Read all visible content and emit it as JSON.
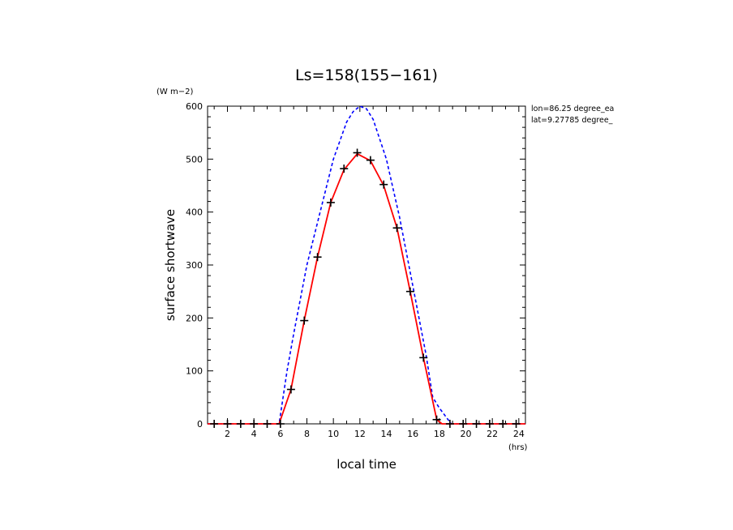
{
  "chart_data": {
    "type": "line",
    "title": "Ls=158(155−161)",
    "xlabel": "local time",
    "ylabel": "surface shortwave",
    "x_unit": "(hrs)",
    "y_unit": "(W m−2)",
    "xlim": [
      0.5,
      24.5
    ],
    "ylim": [
      0,
      600
    ],
    "x_ticks": [
      2,
      4,
      6,
      8,
      10,
      12,
      14,
      16,
      18,
      20,
      22,
      24
    ],
    "y_ticks": [
      0,
      100,
      200,
      300,
      400,
      500,
      600
    ],
    "info_lines": [
      "lon=86.25 degree_ea",
      "lat=9.27785 degree_"
    ],
    "series": [
      {
        "style": "dashed",
        "color": "#0000ff",
        "x": [
          0.5,
          1,
          2,
          3,
          4,
          5,
          5.9,
          6.5,
          7,
          8,
          9,
          10,
          11,
          11.5,
          12,
          12.5,
          13,
          14,
          15,
          16,
          17,
          17.5,
          18,
          18.9,
          19,
          20,
          21,
          22,
          23,
          24,
          24.5
        ],
        "y": [
          0,
          0,
          0,
          0,
          0,
          0,
          0,
          100,
          170,
          300,
          400,
          500,
          570,
          590,
          600,
          595,
          575,
          500,
          390,
          260,
          130,
          50,
          30,
          0,
          0,
          0,
          0,
          0,
          0,
          0,
          0
        ]
      },
      {
        "style": "solid",
        "color": "#ff0000",
        "x": [
          0.5,
          1,
          2,
          3,
          4,
          5,
          5.9,
          6.8,
          7.8,
          8.8,
          9.8,
          10.8,
          11.8,
          12.8,
          13.8,
          14.8,
          15.8,
          16.8,
          17.8,
          18.2,
          19,
          20,
          21,
          22,
          23,
          24,
          24.5
        ],
        "y": [
          0,
          0,
          0,
          0,
          0,
          0,
          0,
          65,
          195,
          315,
          418,
          480,
          510,
          497,
          450,
          370,
          250,
          125,
          8,
          0,
          0,
          0,
          0,
          0,
          0,
          0,
          0
        ]
      },
      {
        "style": "markers",
        "color": "#000000",
        "x": [
          1,
          2,
          3,
          4,
          5,
          6,
          6.8,
          7.8,
          8.8,
          9.8,
          10.8,
          11.8,
          12.8,
          13.8,
          14.8,
          15.8,
          16.8,
          17.8,
          18.8,
          19.8,
          20.8,
          21.8,
          22.8,
          23.8
        ],
        "y": [
          0,
          0,
          0,
          0,
          0,
          0,
          65,
          195,
          315,
          418,
          482,
          512,
          498,
          452,
          370,
          250,
          125,
          8,
          0,
          0,
          0,
          0,
          0,
          0
        ]
      }
    ]
  }
}
